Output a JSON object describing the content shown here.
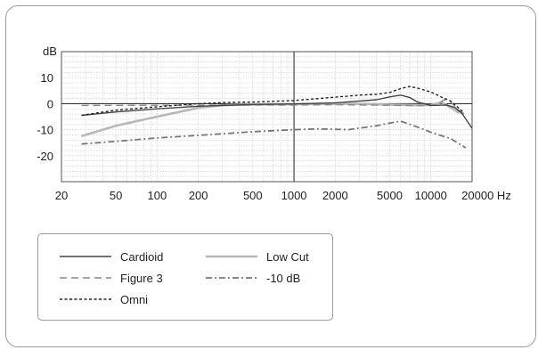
{
  "chart_data": {
    "type": "line",
    "ylabel": "dB",
    "xunit": "Hz",
    "xscale": "log",
    "xlim": [
      20,
      20000
    ],
    "ylim": [
      -30,
      20
    ],
    "xticks": [
      20,
      50,
      100,
      200,
      500,
      1000,
      2000,
      5000,
      10000,
      20000
    ],
    "xtick_labels": [
      "20",
      "50",
      "100",
      "200",
      "500",
      "1000",
      "2000",
      "5000",
      "10000",
      "20000"
    ],
    "yticks": [
      10,
      0,
      -10,
      -20
    ],
    "ytick_labels": [
      "10",
      "0",
      "-10",
      "-20"
    ],
    "grid": true,
    "legend_position": "bottom-left",
    "series": [
      {
        "name": "Cardioid",
        "color": "#444444",
        "style": "solid",
        "width": 1.4,
        "points": [
          [
            28,
            -4.5
          ],
          [
            50,
            -3.2
          ],
          [
            100,
            -2
          ],
          [
            200,
            -1
          ],
          [
            500,
            -0.3
          ],
          [
            1000,
            -0.1
          ],
          [
            2000,
            0.3
          ],
          [
            4000,
            1.5
          ],
          [
            5000,
            2.6
          ],
          [
            6000,
            3.3
          ],
          [
            7000,
            2.4
          ],
          [
            8000,
            0.6
          ],
          [
            10000,
            -0.7
          ],
          [
            13000,
            -0.5
          ],
          [
            15000,
            -1.5
          ],
          [
            17000,
            -4
          ],
          [
            20000,
            -9.5
          ]
        ]
      },
      {
        "name": "Low Cut",
        "color": "#b8b8b8",
        "style": "solid",
        "width": 2.6,
        "points": [
          [
            28,
            -12.5
          ],
          [
            50,
            -8.5
          ],
          [
            100,
            -5
          ],
          [
            150,
            -3
          ],
          [
            200,
            -1.6
          ],
          [
            300,
            -0.6
          ],
          [
            500,
            -0.3
          ],
          [
            1000,
            -0.2
          ],
          [
            3000,
            0
          ],
          [
            5000,
            -0.4
          ],
          [
            8000,
            -0.6
          ],
          [
            10000,
            -0.5
          ],
          [
            12000,
            0.5
          ],
          [
            14000,
            -1.5
          ],
          [
            16000,
            -3.5
          ]
        ]
      },
      {
        "name": "Figure 3",
        "color": "#888888",
        "style": "dashed",
        "width": 1.4,
        "points": [
          [
            28,
            -0.7
          ],
          [
            100,
            -0.6
          ],
          [
            500,
            -0.5
          ],
          [
            1000,
            -0.5
          ],
          [
            2000,
            -0.4
          ],
          [
            5000,
            -0.6
          ],
          [
            8000,
            -0.8
          ],
          [
            11000,
            -0.6
          ],
          [
            12500,
            1.5
          ],
          [
            14000,
            0.5
          ],
          [
            16000,
            -2.5
          ],
          [
            18000,
            -4.5
          ]
        ]
      },
      {
        "name": "-10 dB",
        "color": "#777777",
        "style": "dashdot",
        "width": 1.8,
        "points": [
          [
            28,
            -15.5
          ],
          [
            50,
            -14.5
          ],
          [
            100,
            -13.2
          ],
          [
            200,
            -12.2
          ],
          [
            500,
            -10.8
          ],
          [
            1000,
            -10
          ],
          [
            1500,
            -9.7
          ],
          [
            2500,
            -10
          ],
          [
            4000,
            -8.5
          ],
          [
            5000,
            -7.5
          ],
          [
            6000,
            -6.7
          ],
          [
            8000,
            -9
          ],
          [
            10000,
            -11
          ],
          [
            14000,
            -13.5
          ],
          [
            18000,
            -17
          ]
        ]
      },
      {
        "name": "Omni",
        "color": "#222222",
        "style": "dotted",
        "width": 1.4,
        "points": [
          [
            28,
            -4.5
          ],
          [
            50,
            -2.5
          ],
          [
            100,
            -1.2
          ],
          [
            200,
            0
          ],
          [
            300,
            0.4
          ],
          [
            500,
            0.6
          ],
          [
            1000,
            1.2
          ],
          [
            2000,
            2.5
          ],
          [
            3000,
            3.3
          ],
          [
            4000,
            3.6
          ],
          [
            5000,
            4.3
          ],
          [
            6000,
            5.8
          ],
          [
            7000,
            6.6
          ],
          [
            8000,
            6
          ],
          [
            10000,
            4.5
          ],
          [
            12000,
            2.5
          ],
          [
            14000,
            1
          ],
          [
            17000,
            -3
          ]
        ]
      }
    ]
  }
}
